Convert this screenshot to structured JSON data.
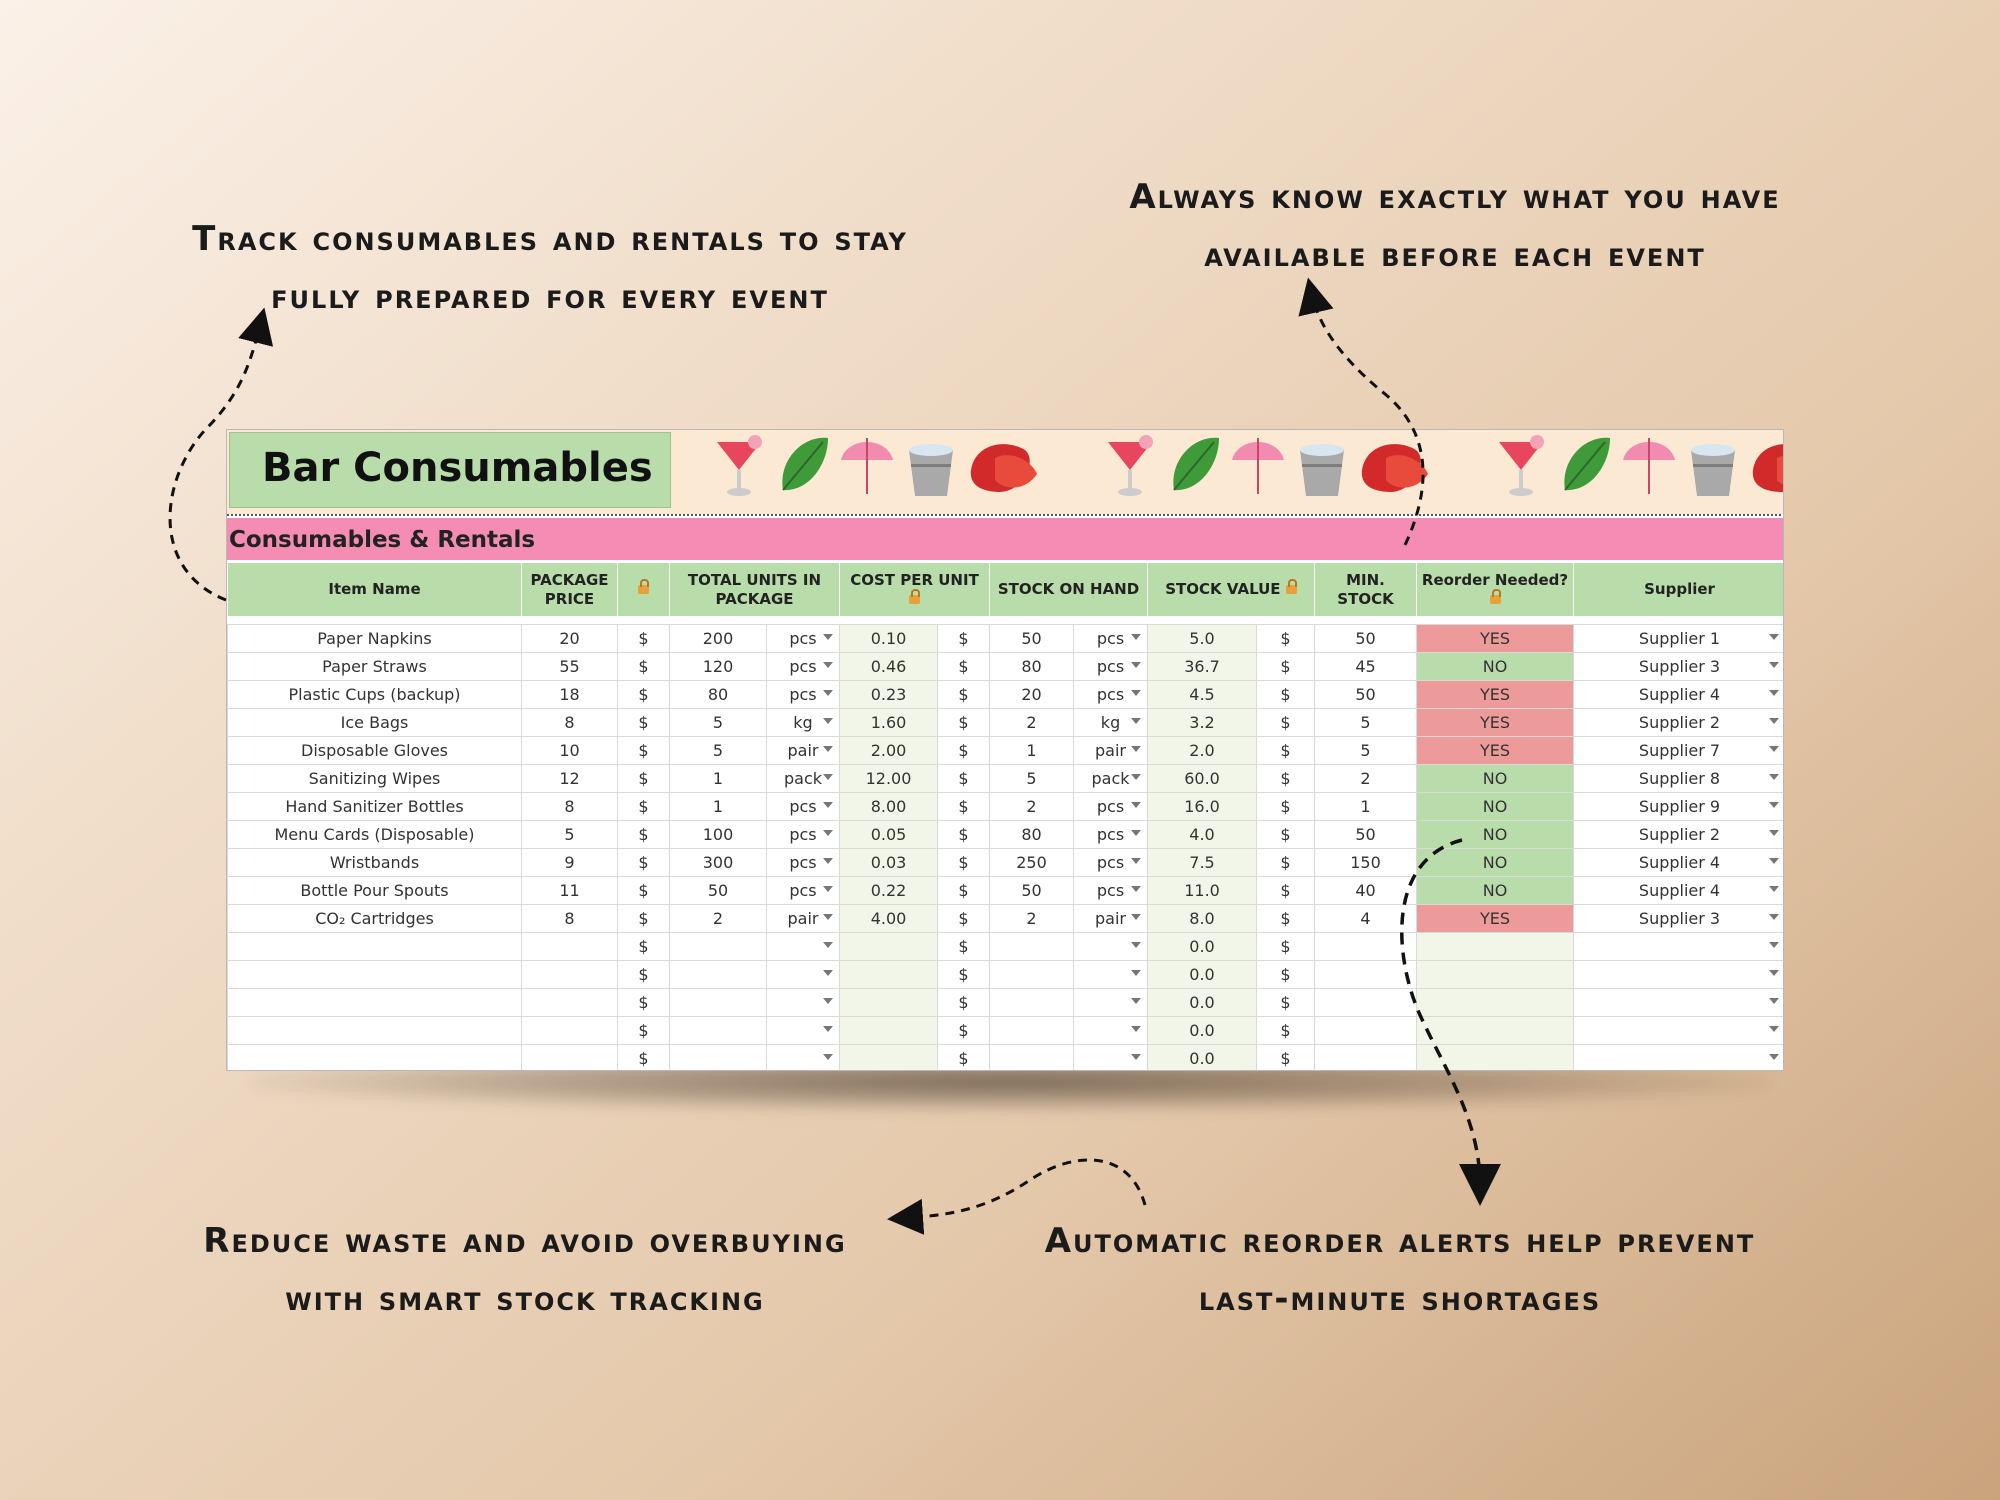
{
  "callouts": {
    "top_left": [
      "Track consumables and rentals to stay",
      "fully prepared for every event"
    ],
    "top_right": [
      "Always know exactly what you have",
      "available before each event"
    ],
    "bottom_left": [
      "Reduce waste and avoid overbuying",
      "with smart stock tracking"
    ],
    "bottom_right": [
      "Automatic reorder alerts help prevent",
      "last-minute shortages"
    ]
  },
  "sheet": {
    "title": "Bar Consumables",
    "section_title": "Consumables & Rentals",
    "decorations": [
      "cocktail-icon",
      "leaf-icon",
      "umbrella-icon",
      "ice-bucket-icon",
      "strawberry-icon"
    ],
    "headers": {
      "item_name": "Item Name",
      "package_price": "PACKAGE PRICE",
      "total_units": "TOTAL UNITS IN PACKAGE",
      "cost_per_unit": "COST PER UNIT",
      "stock_on_hand": "STOCK ON HAND",
      "stock_value": "STOCK VALUE",
      "min_stock": "MIN. STOCK",
      "reorder": "Reorder Needed?",
      "supplier": "Supplier"
    },
    "currency": "$",
    "rows": [
      {
        "name": "Paper Napkins",
        "price": "20",
        "units": "200",
        "unit": "pcs",
        "cpu": "0.10",
        "stock": "50",
        "stock_unit": "pcs",
        "value": "5.0",
        "min": "50",
        "reorder": "YES",
        "supplier": "Supplier 1"
      },
      {
        "name": "Paper Straws",
        "price": "55",
        "units": "120",
        "unit": "pcs",
        "cpu": "0.46",
        "stock": "80",
        "stock_unit": "pcs",
        "value": "36.7",
        "min": "45",
        "reorder": "NO",
        "supplier": "Supplier 3"
      },
      {
        "name": "Plastic Cups (backup)",
        "price": "18",
        "units": "80",
        "unit": "pcs",
        "cpu": "0.23",
        "stock": "20",
        "stock_unit": "pcs",
        "value": "4.5",
        "min": "50",
        "reorder": "YES",
        "supplier": "Supplier 4"
      },
      {
        "name": "Ice Bags",
        "price": "8",
        "units": "5",
        "unit": "kg",
        "cpu": "1.60",
        "stock": "2",
        "stock_unit": "kg",
        "value": "3.2",
        "min": "5",
        "reorder": "YES",
        "supplier": "Supplier 2"
      },
      {
        "name": "Disposable Gloves",
        "price": "10",
        "units": "5",
        "unit": "pair",
        "cpu": "2.00",
        "stock": "1",
        "stock_unit": "pair",
        "value": "2.0",
        "min": "5",
        "reorder": "YES",
        "supplier": "Supplier 7"
      },
      {
        "name": "Sanitizing Wipes",
        "price": "12",
        "units": "1",
        "unit": "pack",
        "cpu": "12.00",
        "stock": "5",
        "stock_unit": "pack",
        "value": "60.0",
        "min": "2",
        "reorder": "NO",
        "supplier": "Supplier 8"
      },
      {
        "name": "Hand Sanitizer Bottles",
        "price": "8",
        "units": "1",
        "unit": "pcs",
        "cpu": "8.00",
        "stock": "2",
        "stock_unit": "pcs",
        "value": "16.0",
        "min": "1",
        "reorder": "NO",
        "supplier": "Supplier 9"
      },
      {
        "name": "Menu Cards (Disposable)",
        "price": "5",
        "units": "100",
        "unit": "pcs",
        "cpu": "0.05",
        "stock": "80",
        "stock_unit": "pcs",
        "value": "4.0",
        "min": "50",
        "reorder": "NO",
        "supplier": "Supplier 2"
      },
      {
        "name": "Wristbands",
        "price": "9",
        "units": "300",
        "unit": "pcs",
        "cpu": "0.03",
        "stock": "250",
        "stock_unit": "pcs",
        "value": "7.5",
        "min": "150",
        "reorder": "NO",
        "supplier": "Supplier 4"
      },
      {
        "name": "Bottle Pour Spouts",
        "price": "11",
        "units": "50",
        "unit": "pcs",
        "cpu": "0.22",
        "stock": "50",
        "stock_unit": "pcs",
        "value": "11.0",
        "min": "40",
        "reorder": "NO",
        "supplier": "Supplier 4"
      },
      {
        "name": "CO₂ Cartridges",
        "price": "8",
        "units": "2",
        "unit": "pair",
        "cpu": "4.00",
        "stock": "2",
        "stock_unit": "pair",
        "value": "8.0",
        "min": "4",
        "reorder": "YES",
        "supplier": "Supplier 3"
      },
      {
        "name": "",
        "price": "",
        "units": "",
        "unit": "",
        "cpu": "",
        "stock": "",
        "stock_unit": "",
        "value": "0.0",
        "min": "",
        "reorder": "",
        "supplier": ""
      },
      {
        "name": "",
        "price": "",
        "units": "",
        "unit": "",
        "cpu": "",
        "stock": "",
        "stock_unit": "",
        "value": "0.0",
        "min": "",
        "reorder": "",
        "supplier": ""
      },
      {
        "name": "",
        "price": "",
        "units": "",
        "unit": "",
        "cpu": "",
        "stock": "",
        "stock_unit": "",
        "value": "0.0",
        "min": "",
        "reorder": "",
        "supplier": ""
      },
      {
        "name": "",
        "price": "",
        "units": "",
        "unit": "",
        "cpu": "",
        "stock": "",
        "stock_unit": "",
        "value": "0.0",
        "min": "",
        "reorder": "",
        "supplier": ""
      },
      {
        "name": "",
        "price": "",
        "units": "",
        "unit": "",
        "cpu": "",
        "stock": "",
        "stock_unit": "",
        "value": "0.0",
        "min": "",
        "reorder": "",
        "supplier": ""
      }
    ]
  },
  "colors": {
    "header_green": "#b9dcab",
    "section_pink": "#f58cb4",
    "yes_red": "#ec9a9a",
    "no_green": "#b9dcab",
    "banner_cream": "#fbe9d4"
  }
}
